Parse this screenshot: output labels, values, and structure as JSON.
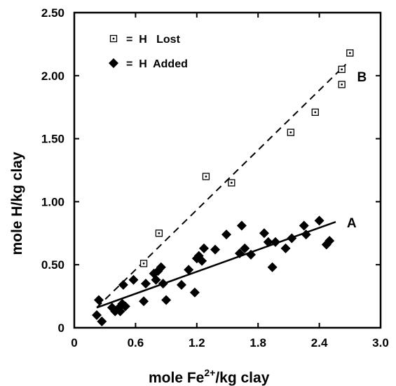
{
  "chart_data": {
    "type": "scatter",
    "xlabel": "mole Fe",
    "xlabel_sup": "2+",
    "xlabel_tail": "/kg clay",
    "ylabel": "mole H/kg clay",
    "xlim": [
      0,
      3.0
    ],
    "ylim": [
      0,
      2.5
    ],
    "x_ticks": [
      0,
      0.6,
      1.2,
      1.8,
      2.4,
      3.0
    ],
    "x_tick_labels": [
      "0",
      "0.6",
      "1.2",
      "1.8",
      "2.4",
      "3.0"
    ],
    "y_ticks": [
      0,
      0.5,
      1.0,
      1.5,
      2.0,
      2.5
    ],
    "y_tick_labels": [
      "0",
      "0.50",
      "1.00",
      "1.50",
      "2.00",
      "2.50"
    ],
    "grid": false,
    "legend_position": "top-left",
    "legend": [
      {
        "marker": "open-square-dot",
        "text": "=  H   Lost"
      },
      {
        "marker": "filled-diamond",
        "text": "=  H  Added"
      }
    ],
    "series": [
      {
        "marker": "open-square-dot",
        "points": [
          [
            0.68,
            0.51
          ],
          [
            0.83,
            0.75
          ],
          [
            1.29,
            1.2
          ],
          [
            1.54,
            1.15
          ],
          [
            2.12,
            1.55
          ],
          [
            2.36,
            1.71
          ],
          [
            2.62,
            2.05
          ],
          [
            2.62,
            1.93
          ],
          [
            2.7,
            2.18
          ]
        ]
      },
      {
        "marker": "filled-diamond",
        "points": [
          [
            0.22,
            0.1
          ],
          [
            0.24,
            0.22
          ],
          [
            0.27,
            0.05
          ],
          [
            0.37,
            0.16
          ],
          [
            0.4,
            0.13
          ],
          [
            0.44,
            0.16
          ],
          [
            0.45,
            0.13
          ],
          [
            0.47,
            0.19
          ],
          [
            0.48,
            0.34
          ],
          [
            0.5,
            0.17
          ],
          [
            0.58,
            0.38
          ],
          [
            0.68,
            0.21
          ],
          [
            0.7,
            0.35
          ],
          [
            0.78,
            0.43
          ],
          [
            0.8,
            0.38
          ],
          [
            0.82,
            0.45
          ],
          [
            0.85,
            0.48
          ],
          [
            0.87,
            0.35
          ],
          [
            0.9,
            0.22
          ],
          [
            1.05,
            0.34
          ],
          [
            1.12,
            0.46
          ],
          [
            1.18,
            0.28
          ],
          [
            1.2,
            0.55
          ],
          [
            1.22,
            0.57
          ],
          [
            1.25,
            0.53
          ],
          [
            1.27,
            0.63
          ],
          [
            1.38,
            0.62
          ],
          [
            1.49,
            0.74
          ],
          [
            1.62,
            0.59
          ],
          [
            1.64,
            0.81
          ],
          [
            1.67,
            0.63
          ],
          [
            1.73,
            0.58
          ],
          [
            1.86,
            0.75
          ],
          [
            1.9,
            0.68
          ],
          [
            1.94,
            0.48
          ],
          [
            1.97,
            0.68
          ],
          [
            2.07,
            0.63
          ],
          [
            2.13,
            0.71
          ],
          [
            2.25,
            0.81
          ],
          [
            2.27,
            0.74
          ],
          [
            2.4,
            0.85
          ],
          [
            2.47,
            0.66
          ],
          [
            2.5,
            0.69
          ]
        ]
      }
    ],
    "fit_lines": [
      {
        "style": "dashed",
        "label": "B",
        "from": [
          0.22,
          0.16
        ],
        "to": [
          2.66,
          2.09
        ]
      },
      {
        "style": "solid",
        "label": "A",
        "from": [
          0.22,
          0.16
        ],
        "to": [
          2.56,
          0.84
        ]
      }
    ]
  }
}
